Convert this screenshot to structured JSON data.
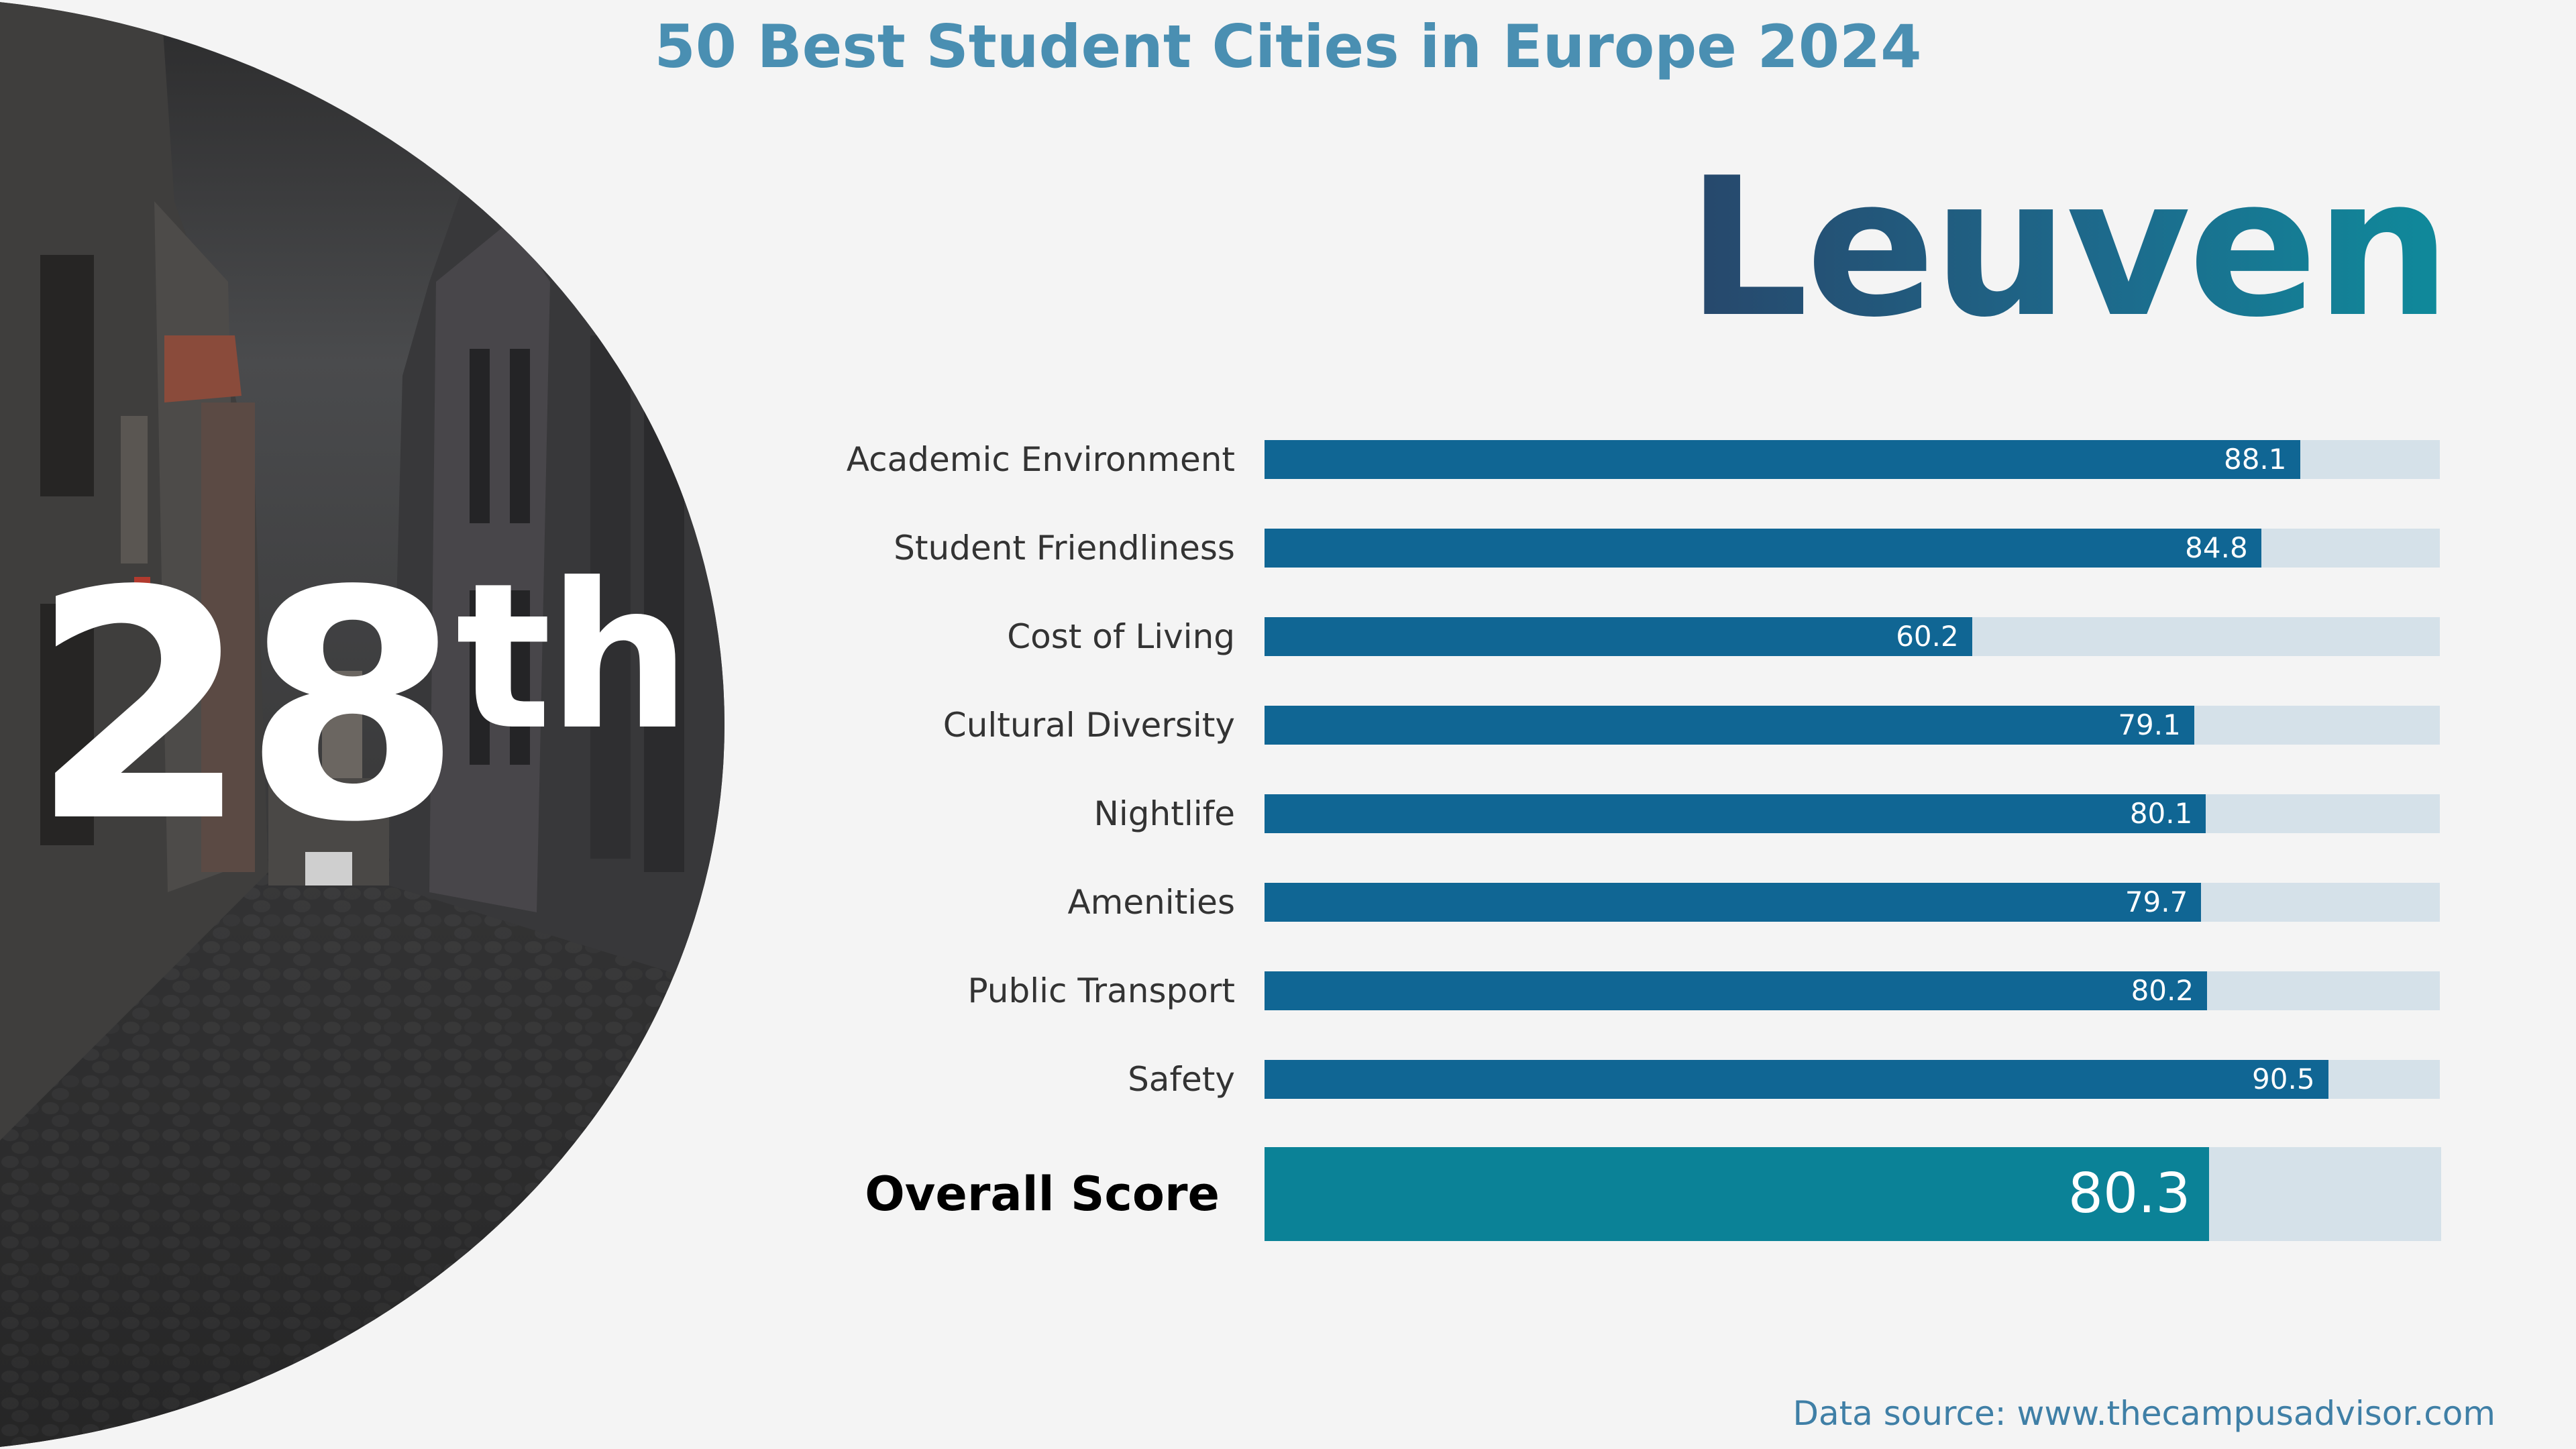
{
  "header": {
    "title": "50 Best Student Cities in Europe 2024"
  },
  "city": {
    "name": "Leuven"
  },
  "rank": {
    "number": "28",
    "suffix": "th"
  },
  "chart_data": {
    "type": "bar",
    "orientation": "horizontal",
    "categories": [
      "Academic Environment",
      "Student Friendliness",
      "Cost of Living",
      "Cultural Diversity",
      "Nightlife",
      "Amenities",
      "Public Transport",
      "Safety"
    ],
    "values": [
      88.1,
      84.8,
      60.2,
      79.1,
      80.1,
      79.7,
      80.2,
      90.5
    ],
    "xlim": [
      0,
      100
    ],
    "overall": {
      "label": "Overall Score",
      "value": 80.3
    },
    "colors": {
      "bar": "#106694",
      "track": "#d5e1e9",
      "overall_bar": "#0b8297",
      "title": "#4a8fb2"
    }
  },
  "footer": {
    "source": "Data source: www.thecampusadvisor.com"
  }
}
